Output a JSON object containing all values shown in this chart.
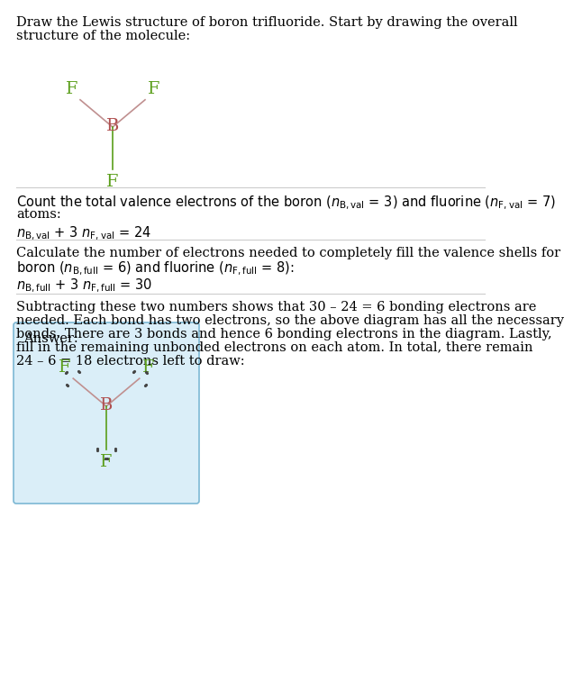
{
  "bg_color": "#ffffff",
  "answer_box_color": "#daeef8",
  "answer_box_border": "#7db8d4",
  "F_color": "#5a9e1a",
  "B_color": "#b05050",
  "bond_color_diag": "#c09090",
  "bond_color_vert": "#5a9e1a",
  "dot_color": "#444444",
  "text_color": "#000000",
  "font_size_main": 10.5,
  "title_line1": "Draw the Lewis structure of boron trifluoride. Start by drawing the overall",
  "title_line2": "structure of the molecule:",
  "s1_line1": "Count the total valence electrons of the boron (",
  "s1_line2": "atoms:",
  "s1_eq": "= 3) and fluorine (",
  "s2_line1": "Calculate the number of electrons needed to completely fill the valence shells for",
  "s2_line2a": "boron (",
  "s2_line2b": " = 6) and fluorine (",
  "s2_line2c": " = 8):",
  "s3_line1": "Subtracting these two numbers shows that 30 – 24 = 6 bonding electrons are",
  "s3_line2": "needed. Each bond has two electrons, so the above diagram has all the necessary",
  "s3_line3": "bonds. There are 3 bonds and hence 6 bonding electrons in the diagram. Lastly,",
  "s3_line4": "fill in the remaining unbonded electrons on each atom. In total, there remain",
  "s3_line5": "24 – 6 = 18 electrons left to draw:",
  "answer_label": "Answer:"
}
